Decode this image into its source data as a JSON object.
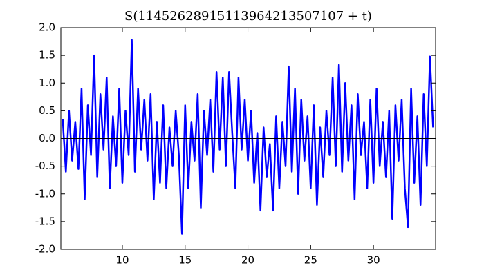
{
  "chart_data": {
    "type": "line",
    "title": "S(11452628915113964213507107 + t)",
    "x": [
      5.25,
      5.5,
      5.75,
      6.0,
      6.25,
      6.5,
      6.75,
      7.0,
      7.25,
      7.5,
      7.75,
      8.0,
      8.25,
      8.5,
      8.75,
      9.0,
      9.25,
      9.5,
      9.75,
      10.0,
      10.25,
      10.5,
      10.75,
      11.0,
      11.25,
      11.5,
      11.75,
      12.0,
      12.25,
      12.5,
      12.75,
      13.0,
      13.25,
      13.5,
      13.75,
      14.0,
      14.25,
      14.5,
      14.75,
      15.0,
      15.25,
      15.5,
      15.75,
      16.0,
      16.25,
      16.5,
      16.75,
      17.0,
      17.25,
      17.5,
      17.75,
      18.0,
      18.25,
      18.5,
      18.75,
      19.0,
      19.25,
      19.5,
      19.75,
      20.0,
      20.25,
      20.5,
      20.75,
      21.0,
      21.25,
      21.5,
      21.75,
      22.0,
      22.25,
      22.5,
      22.75,
      23.0,
      23.25,
      23.5,
      23.75,
      24.0,
      24.25,
      24.5,
      24.75,
      25.0,
      25.25,
      25.5,
      25.75,
      26.0,
      26.25,
      26.5,
      26.75,
      27.0,
      27.25,
      27.5,
      27.75,
      28.0,
      28.25,
      28.5,
      28.75,
      29.0,
      29.25,
      29.5,
      29.75,
      30.0,
      30.25,
      30.5,
      30.75,
      31.0,
      31.25,
      31.5,
      31.75,
      32.0,
      32.25,
      32.5,
      32.75,
      33.0,
      33.25,
      33.5,
      33.75,
      34.0,
      34.25,
      34.5,
      34.75
    ],
    "series": [
      {
        "name": "S",
        "color": "#0000ff",
        "values": [
          0.35,
          -0.6,
          0.5,
          -0.4,
          0.3,
          -0.55,
          0.9,
          -1.1,
          0.6,
          -0.3,
          1.5,
          -0.7,
          0.8,
          -0.2,
          1.1,
          -0.9,
          0.4,
          -0.5,
          0.9,
          -0.8,
          0.5,
          -0.3,
          1.78,
          -0.6,
          0.9,
          -0.2,
          0.7,
          -0.4,
          0.8,
          -1.1,
          0.3,
          -0.8,
          0.6,
          -0.9,
          0.2,
          -0.5,
          0.5,
          -0.3,
          -1.72,
          0.6,
          -0.9,
          0.3,
          -0.4,
          0.8,
          -1.25,
          0.5,
          -0.3,
          0.7,
          -0.6,
          1.2,
          -0.2,
          1.1,
          -0.5,
          1.2,
          0.1,
          -0.9,
          1.1,
          -0.2,
          0.7,
          -0.4,
          0.5,
          -0.8,
          0.1,
          -1.3,
          0.2,
          -0.7,
          -0.1,
          -1.3,
          0.4,
          -0.9,
          0.3,
          -0.5,
          1.3,
          -0.6,
          0.9,
          -1.0,
          0.7,
          -0.4,
          0.4,
          -0.9,
          0.6,
          -1.2,
          0.2,
          -0.7,
          0.5,
          -0.3,
          1.1,
          -0.5,
          1.33,
          -0.6,
          1.0,
          -0.4,
          0.6,
          -1.1,
          0.8,
          -0.3,
          0.3,
          -0.9,
          0.7,
          -0.8,
          0.9,
          -0.5,
          0.3,
          -0.7,
          0.5,
          -1.45,
          0.6,
          -0.4,
          0.7,
          -0.9,
          -1.6,
          0.9,
          -0.8,
          0.4,
          -1.2,
          0.8,
          -0.5,
          1.48,
          0.2
        ]
      }
    ],
    "xlim": [
      5.1,
      34.95
    ],
    "xticks": [
      10,
      15,
      20,
      25,
      30
    ],
    "ylim": [
      -2,
      2
    ],
    "yticks": [
      {
        "value": -2,
        "label": "-2.0"
      },
      {
        "value": -1.5,
        "label": "-1.5"
      },
      {
        "value": -1,
        "label": "-1.0"
      },
      {
        "value": -0.5,
        "label": "-0.5"
      },
      {
        "value": 0,
        "label": "0.0"
      },
      {
        "value": 0.5,
        "label": "0.5"
      },
      {
        "value": 1,
        "label": "1.0"
      },
      {
        "value": 1.5,
        "label": "1.5"
      },
      {
        "value": 2,
        "label": "2.0"
      }
    ],
    "hline": 0
  }
}
